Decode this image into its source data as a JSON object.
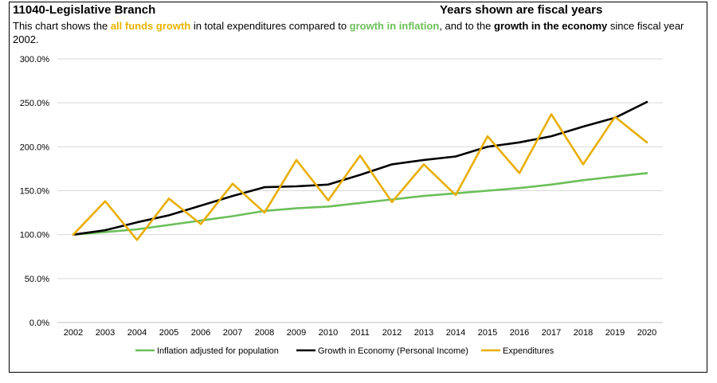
{
  "header": {
    "title": "11040-Legislative Branch",
    "fiscal_note": "Years shown are fiscal years",
    "desc_part1": "This chart shows the ",
    "desc_highlight1": "all funds growth",
    "desc_part2": " in total expenditures compared to ",
    "desc_highlight2": "growth in inflation",
    "desc_part3": ", and to the ",
    "desc_highlight3": "growth in the economy",
    "desc_part4": " since fiscal year 2002."
  },
  "colors": {
    "inflation": "#6BBF59",
    "economy": "#000000",
    "expenditures": "#E8AE00",
    "grid": "#D9D9D9",
    "highlight_orange": "#E8B400"
  },
  "chart_data": {
    "type": "line",
    "x": [
      "2002",
      "2003",
      "2004",
      "2005",
      "2006",
      "2007",
      "2008",
      "2009",
      "2010",
      "2011",
      "2012",
      "2013",
      "2014",
      "2015",
      "2016",
      "2017",
      "2018",
      "2019",
      "2020"
    ],
    "ylim": [
      0,
      300
    ],
    "yticks": [
      "0.0%",
      "50.0%",
      "100.0%",
      "150.0%",
      "200.0%",
      "250.0%",
      "300.0%"
    ],
    "grid": true,
    "legend_position": "bottom",
    "series": [
      {
        "name": "Inflation adjusted for population",
        "color": "#6BBF59",
        "values": [
          100,
          103,
          106,
          111,
          116,
          121,
          127,
          130,
          132,
          136,
          140,
          144,
          147,
          150,
          153,
          157,
          162,
          166,
          170
        ]
      },
      {
        "name": "Growth in Economy (Personal Income)",
        "color": "#000000",
        "values": [
          100,
          105,
          114,
          122,
          133,
          144,
          154,
          155,
          157,
          168,
          180,
          185,
          189,
          200,
          205,
          212,
          223,
          233,
          251
        ]
      },
      {
        "name": "Expenditures",
        "color": "#E8AE00",
        "values": [
          100,
          138,
          94,
          141,
          112,
          158,
          125,
          185,
          139,
          190,
          137,
          180,
          145,
          212,
          170,
          237,
          180,
          234,
          205
        ]
      }
    ]
  }
}
